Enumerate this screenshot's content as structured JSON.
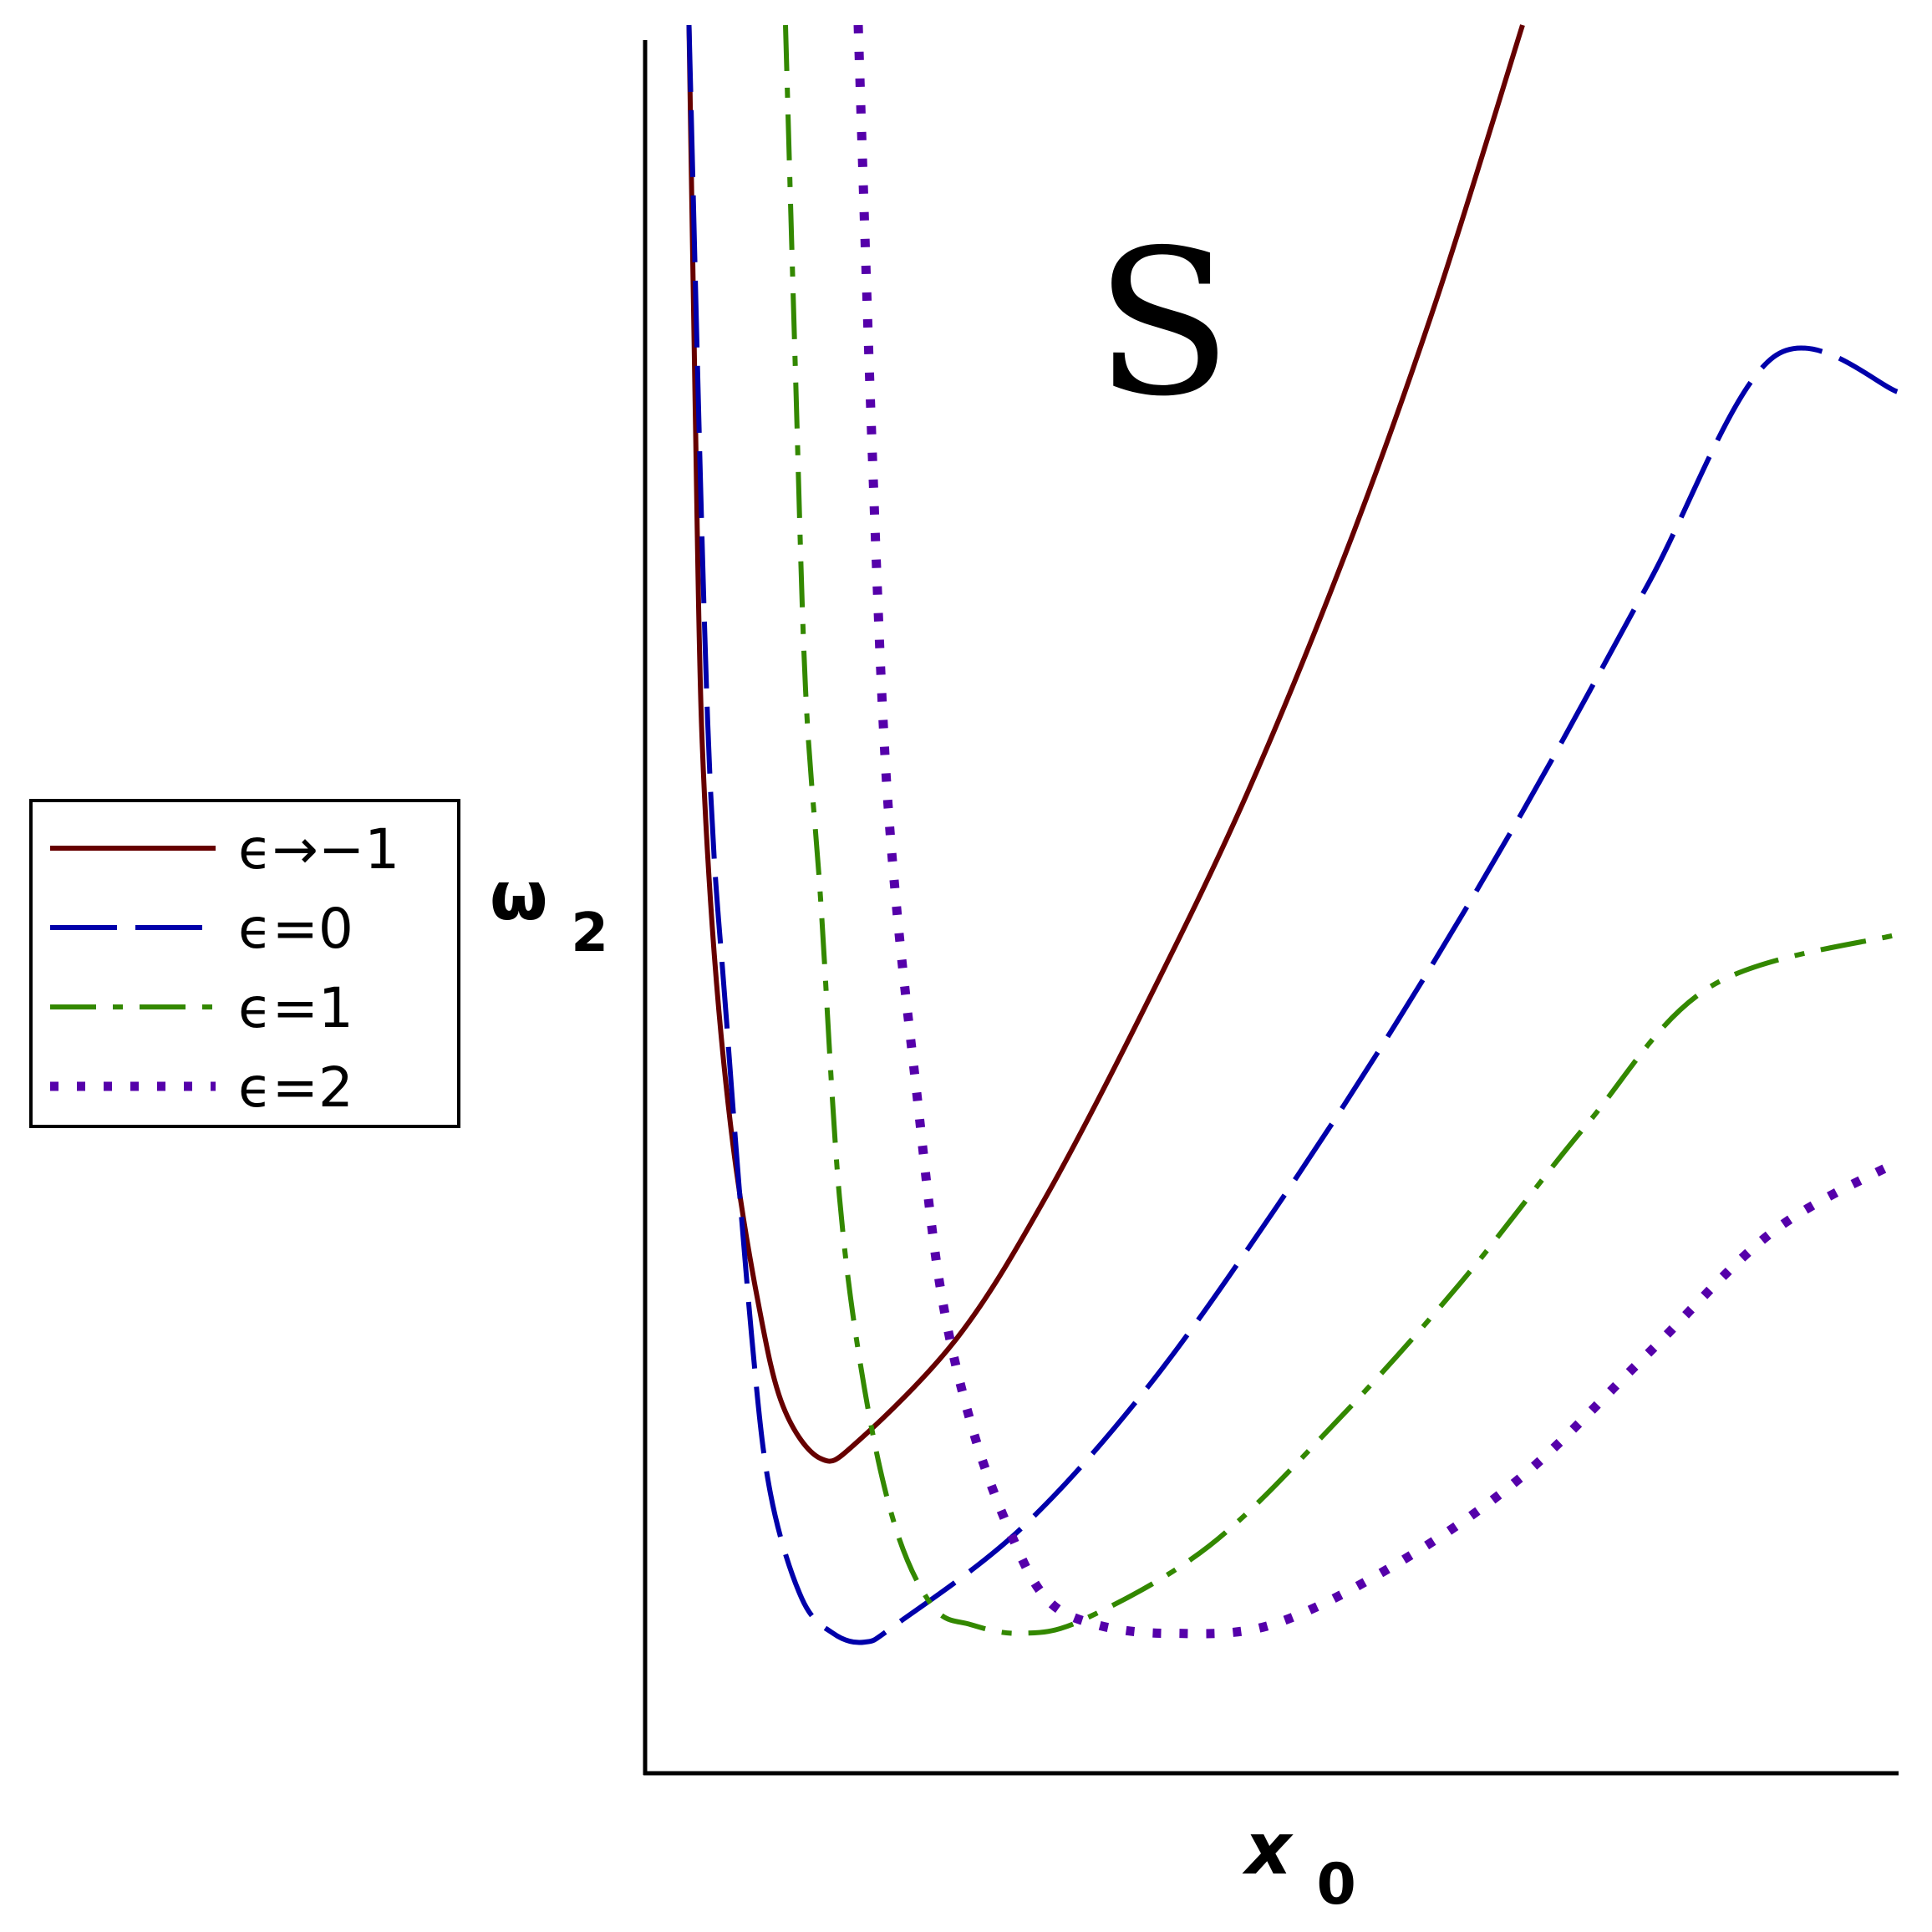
{
  "chart_data": {
    "type": "line",
    "title": "",
    "xlabel": {
      "base": "x",
      "sub": "0"
    },
    "ylabel": {
      "base": "ω",
      "sub": "2"
    },
    "xlim": [
      0,
      1
    ],
    "ylim": [
      0,
      1
    ],
    "ticks": "none",
    "grid": false,
    "legend_position": "left",
    "annotation": "S",
    "series": [
      {
        "name": "ϵ→−1",
        "color": "#660000",
        "dash": "solid",
        "points": [
          [
            0.035,
            1.0
          ],
          [
            0.04,
            0.78
          ],
          [
            0.045,
            0.6
          ],
          [
            0.055,
            0.47
          ],
          [
            0.07,
            0.36
          ],
          [
            0.09,
            0.27
          ],
          [
            0.11,
            0.21
          ],
          [
            0.14,
            0.18
          ],
          [
            0.17,
            0.19
          ],
          [
            0.25,
            0.25
          ],
          [
            0.32,
            0.33
          ],
          [
            0.4,
            0.44
          ],
          [
            0.48,
            0.56
          ],
          [
            0.56,
            0.7
          ],
          [
            0.63,
            0.84
          ],
          [
            0.7,
            1.0
          ]
        ]
      },
      {
        "name": "ϵ=0",
        "color": "#0000aa",
        "dash": "long-dash",
        "points": [
          [
            0.035,
            1.0
          ],
          [
            0.05,
            0.6
          ],
          [
            0.065,
            0.43
          ],
          [
            0.085,
            0.25
          ],
          [
            0.1,
            0.16
          ],
          [
            0.125,
            0.1
          ],
          [
            0.15,
            0.08
          ],
          [
            0.175,
            0.075
          ],
          [
            0.2,
            0.085
          ],
          [
            0.3,
            0.14
          ],
          [
            0.4,
            0.22
          ],
          [
            0.5,
            0.32
          ],
          [
            0.6,
            0.43
          ],
          [
            0.7,
            0.55
          ],
          [
            0.8,
            0.68
          ],
          [
            0.9,
            0.81
          ],
          [
            1.0,
            0.79
          ]
        ]
      },
      {
        "name": "ϵ=1",
        "color": "#338800",
        "dash": "dash-dot",
        "points": [
          [
            0.112,
            1.0
          ],
          [
            0.12,
            0.8
          ],
          [
            0.128,
            0.62
          ],
          [
            0.14,
            0.5
          ],
          [
            0.155,
            0.33
          ],
          [
            0.175,
            0.22
          ],
          [
            0.2,
            0.14
          ],
          [
            0.23,
            0.095
          ],
          [
            0.26,
            0.085
          ],
          [
            0.3,
            0.08
          ],
          [
            0.35,
            0.088
          ],
          [
            0.45,
            0.13
          ],
          [
            0.55,
            0.2
          ],
          [
            0.65,
            0.28
          ],
          [
            0.75,
            0.37
          ],
          [
            0.85,
            0.45
          ],
          [
            1.0,
            0.48
          ]
        ]
      },
      {
        "name": "ϵ=2",
        "color": "#5500aa",
        "dash": "dotted",
        "points": [
          [
            0.17,
            1.0
          ],
          [
            0.18,
            0.78
          ],
          [
            0.19,
            0.6
          ],
          [
            0.2,
            0.5
          ],
          [
            0.215,
            0.4
          ],
          [
            0.235,
            0.28
          ],
          [
            0.26,
            0.2
          ],
          [
            0.29,
            0.14
          ],
          [
            0.32,
            0.1
          ],
          [
            0.36,
            0.085
          ],
          [
            0.42,
            0.08
          ],
          [
            0.5,
            0.085
          ],
          [
            0.6,
            0.12
          ],
          [
            0.7,
            0.17
          ],
          [
            0.8,
            0.24
          ],
          [
            0.9,
            0.31
          ],
          [
            1.0,
            0.35
          ]
        ]
      }
    ]
  }
}
